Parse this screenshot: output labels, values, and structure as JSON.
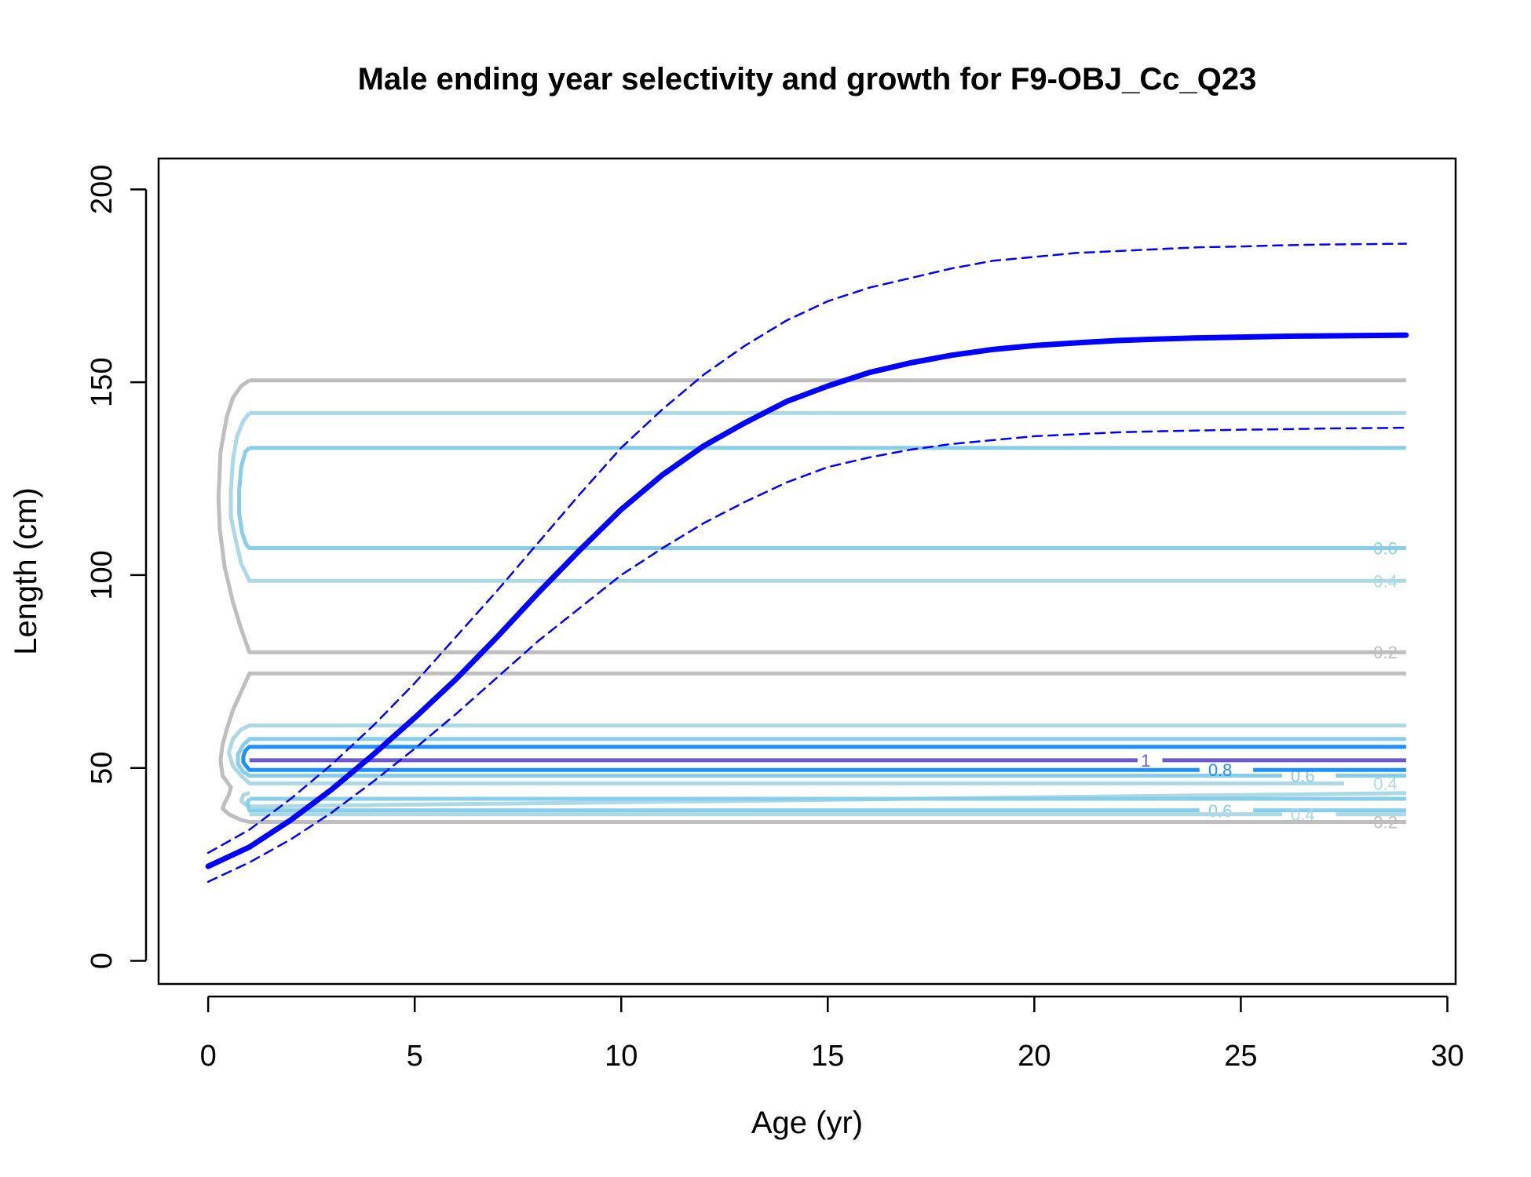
{
  "chart_data": {
    "type": "line",
    "title": "Male ending year selectivity and growth for F9-OBJ_Cc_Q23",
    "xlabel": "Age (yr)",
    "ylabel": "Length (cm)",
    "xlim": [
      -1.2,
      30.2
    ],
    "ylim": [
      -6,
      208
    ],
    "x_ticks": [
      0,
      5,
      10,
      15,
      20,
      25,
      30
    ],
    "y_ticks": [
      0,
      50,
      100,
      150,
      200
    ],
    "x_tick_labels": [
      "0",
      "5",
      "10",
      "15",
      "20",
      "25",
      "30"
    ],
    "y_tick_labels": [
      "0",
      "50",
      "100",
      "150",
      "200"
    ],
    "grid": false,
    "series": [
      {
        "style": "solid",
        "color": "#0000ff",
        "ages": [
          0,
          1,
          2,
          3,
          4,
          5,
          6,
          7,
          8,
          9,
          10,
          11,
          12,
          13,
          14,
          15,
          16,
          17,
          18,
          19,
          20,
          21,
          22,
          23,
          24,
          25,
          26,
          27,
          28,
          29
        ],
        "lengths": [
          24.5,
          29.5,
          36.5,
          44.5,
          53.5,
          63,
          73,
          84,
          95.5,
          106.5,
          117,
          126,
          133.5,
          139.5,
          145,
          149,
          152.5,
          155,
          157,
          158.5,
          159.5,
          160.2,
          160.8,
          161.2,
          161.5,
          161.7,
          161.9,
          162,
          162.1,
          162.2
        ]
      },
      {
        "style": "dashed",
        "color": "#0000ff",
        "ages": [
          0,
          1,
          2,
          3,
          4,
          5,
          6,
          7,
          8,
          9,
          10,
          11,
          12,
          13,
          14,
          15,
          16,
          17,
          18,
          19,
          20,
          21,
          22,
          23,
          24,
          25,
          26,
          27,
          28,
          29
        ],
        "lengths": [
          28,
          34,
          42,
          51,
          61,
          72,
          84,
          96,
          108.5,
          121,
          133,
          143,
          152,
          159.5,
          166,
          171,
          174.5,
          177,
          179.5,
          181.5,
          182.5,
          183.5,
          184,
          184.5,
          185,
          185.2,
          185.5,
          185.7,
          185.8,
          185.9
        ]
      },
      {
        "style": "dashed",
        "color": "#0000ff",
        "ages": [
          0,
          1,
          2,
          3,
          4,
          5,
          6,
          7,
          8,
          9,
          10,
          11,
          12,
          13,
          14,
          15,
          16,
          17,
          18,
          19,
          20,
          21,
          22,
          23,
          24,
          25,
          26,
          27,
          28,
          29
        ],
        "lengths": [
          20.5,
          25.5,
          31.5,
          38.5,
          46.5,
          55,
          64,
          73.5,
          83,
          91.5,
          100,
          107,
          113.5,
          119,
          124,
          128,
          130.5,
          132.5,
          134,
          135,
          136,
          136.5,
          137,
          137.3,
          137.5,
          137.7,
          137.8,
          138,
          138.1,
          138.2
        ]
      }
    ],
    "contours": [
      {
        "level": 0.2,
        "color": "#bebebe",
        "ages": [
          1,
          0.8,
          0.6,
          0.45,
          0.3,
          0.25,
          0.28,
          0.4,
          0.6,
          0.8,
          1,
          29
        ],
        "lengths": [
          150.5,
          149,
          146,
          141,
          132,
          120,
          112,
          102,
          93,
          86,
          80,
          80
        ],
        "label_age": 28.5,
        "label": "0.2"
      },
      {
        "level": 0.4,
        "color": "#add8e6",
        "ages": [
          1,
          0.85,
          0.7,
          0.6,
          0.55,
          0.55,
          0.65,
          0.8,
          1,
          29
        ],
        "lengths": [
          142,
          140,
          136,
          130,
          122,
          115,
          110,
          103,
          98.5,
          98.5
        ],
        "label_age": 28.5,
        "label": "0.4"
      },
      {
        "level": 0.6,
        "color": "#87ceeb",
        "ages": [
          1,
          0.9,
          0.8,
          0.75,
          0.75,
          0.82,
          0.92,
          1,
          29
        ],
        "lengths": [
          133,
          132,
          128,
          122,
          116,
          111,
          108,
          107,
          107
        ],
        "label_age": 28.5,
        "label": "0.6"
      },
      {
        "level": 0.6,
        "color": "#87ceeb",
        "ages": [
          1,
          29
        ],
        "lengths": [
          133,
          133
        ],
        "label_age": null,
        "label": ""
      },
      {
        "level": 0.4,
        "color": "#add8e6",
        "ages": [
          1,
          29
        ],
        "lengths": [
          142,
          142
        ],
        "label_age": null,
        "label": ""
      },
      {
        "level": 0.2,
        "color": "#bebebe",
        "ages": [
          1,
          29
        ],
        "lengths": [
          150.5,
          150.5
        ],
        "label_age": null,
        "label": ""
      },
      {
        "level": 0.2,
        "color": "#bebebe",
        "ages": [
          29,
          1,
          0.85,
          0.6,
          0.45,
          0.35,
          0.3,
          0.35,
          0.55,
          0.5,
          0.4,
          0.35,
          0.5,
          0.8,
          1,
          29
        ],
        "lengths": [
          74.5,
          74.5,
          71,
          65,
          60,
          56,
          52,
          48,
          45,
          43,
          41,
          39.5,
          38,
          36.5,
          36,
          36
        ],
        "label_age": 28.5,
        "label": "0.2"
      },
      {
        "level": 0.4,
        "color": "#add8e6",
        "ages": [
          29,
          1,
          0.8,
          0.6,
          0.5,
          0.6,
          0.8,
          1,
          27.5
        ],
        "lengths": [
          61,
          61,
          60,
          57.5,
          54,
          50.5,
          48,
          46,
          46
        ],
        "label_age": 28.5,
        "label": "0.4"
      },
      {
        "level": 0.6,
        "color": "#87ceeb",
        "ages": [
          29,
          1,
          0.85,
          0.72,
          0.72,
          0.85,
          1,
          26
        ],
        "lengths": [
          57.5,
          57.5,
          56,
          53.5,
          51,
          49,
          48,
          48
        ],
        "label_age": 26.5,
        "label": "0.6"
      },
      {
        "level": 0.8,
        "color": "#1e90ff",
        "ages": [
          29,
          1,
          0.9,
          0.85,
          0.85,
          0.92,
          1,
          24
        ],
        "lengths": [
          55.5,
          55.5,
          54.5,
          53,
          51.5,
          50.5,
          49.5,
          49.5
        ],
        "label_age": 24.5,
        "label": "0.8"
      },
      {
        "level": 1,
        "color": "#6a5acd",
        "ages": [
          1,
          22.5
        ],
        "lengths": [
          52,
          52
        ],
        "label_age": 22.7,
        "label": "1"
      },
      {
        "level": 1,
        "color": "#6a5acd",
        "ages": [
          23.1,
          29
        ],
        "lengths": [
          52,
          52
        ],
        "label_age": null,
        "label": ""
      },
      {
        "level": 0.8,
        "color": "#1e90ff",
        "ages": [
          25.3,
          29
        ],
        "lengths": [
          49.5,
          49.5
        ],
        "label_age": null,
        "label": ""
      },
      {
        "level": 0.6,
        "color": "#87ceeb",
        "ages": [
          27.3,
          29
        ],
        "lengths": [
          48,
          48
        ],
        "label_age": null,
        "label": ""
      },
      {
        "level": 0.4,
        "color": "#add8e6",
        "ages": [
          1,
          0.85,
          0.8,
          0.9,
          1,
          29
        ],
        "lengths": [
          43.5,
          43,
          41.5,
          40.5,
          40,
          43.5
        ],
        "label_age": null,
        "label": ""
      },
      {
        "level": 0.6,
        "color": "#87ceeb",
        "ages": [
          1,
          0.95,
          1,
          24
        ],
        "lengths": [
          42,
          41,
          39,
          39
        ],
        "label_age": 24.5,
        "label": "0.6"
      },
      {
        "level": 0.6,
        "color": "#87ceeb",
        "ages": [
          1,
          29
        ],
        "lengths": [
          42,
          42
        ],
        "label_age": null,
        "label": ""
      },
      {
        "level": 0.6,
        "color": "#87ceeb",
        "ages": [
          25.3,
          29
        ],
        "lengths": [
          39,
          39
        ],
        "label_age": null,
        "label": ""
      },
      {
        "level": 0.4,
        "color": "#add8e6",
        "ages": [
          1,
          26
        ],
        "lengths": [
          38,
          38
        ],
        "label_age": 26.5,
        "label": "0.4"
      },
      {
        "level": 0.4,
        "color": "#add8e6",
        "ages": [
          27.3,
          29
        ],
        "lengths": [
          38,
          38
        ],
        "label_age": null,
        "label": ""
      }
    ]
  }
}
